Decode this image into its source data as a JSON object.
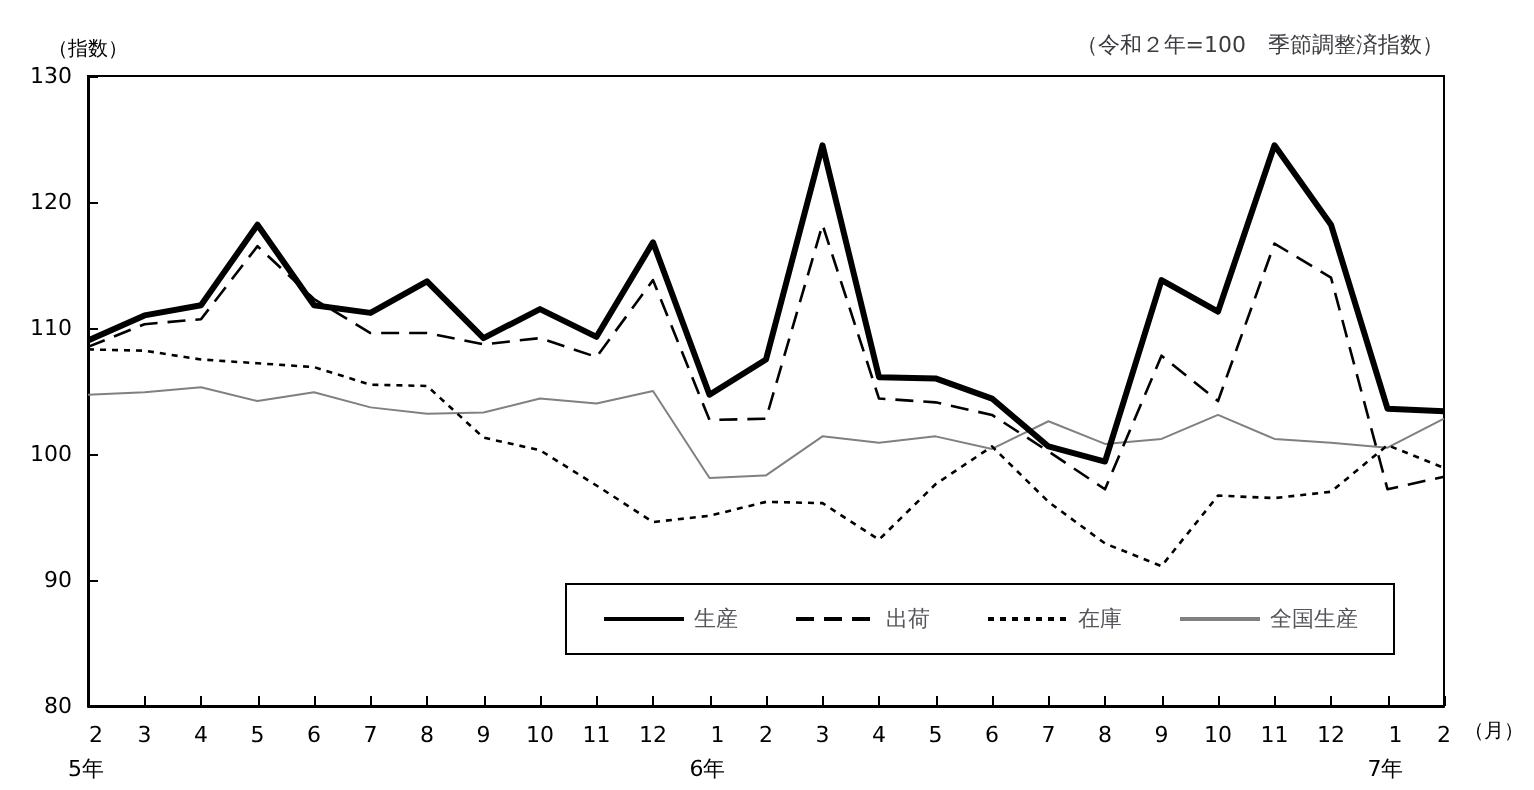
{
  "chart_data": {
    "type": "line",
    "ylabel": "（指数）",
    "xlabel": "（月）",
    "annotations": [
      "（令和２年=100　季節調整済指数）"
    ],
    "categories": [
      "2\n5年",
      "3",
      "4",
      "5",
      "6",
      "7",
      "8",
      "9",
      "10",
      "11",
      "12",
      "1\n6年",
      "2",
      "3",
      "4",
      "5",
      "6",
      "7",
      "8",
      "9",
      "10",
      "11",
      "12",
      "1\n7年",
      "2"
    ],
    "series": [
      {
        "name": "生産",
        "color": "#000000",
        "line_style": "solid",
        "values": [
          109,
          111,
          111.8,
          118.2,
          111.8,
          111.2,
          113.7,
          109.2,
          111.5,
          109.3,
          116.8,
          104.7,
          107.5,
          124.5,
          106.1,
          106,
          104.4,
          100.6,
          99.4,
          113.8,
          111.3,
          124.5,
          118.2,
          103.6,
          103.4
        ]
      },
      {
        "name": "出荷",
        "color": "#000000",
        "line_style": "dashed",
        "values": [
          108.5,
          110.3,
          110.7,
          116.5,
          112.3,
          109.6,
          109.6,
          108.7,
          109.2,
          107.7,
          113.8,
          102.7,
          102.8,
          118.2,
          104.4,
          104.1,
          103.1,
          100.2,
          97.2,
          107.8,
          104.2,
          116.7,
          114,
          97.2,
          98.2
        ]
      },
      {
        "name": "在庫",
        "color": "#000000",
        "line_style": "dotted",
        "values": [
          108.3,
          108.2,
          107.5,
          107.2,
          106.9,
          105.5,
          105.4,
          101.3,
          100.3,
          97.5,
          94.6,
          95.1,
          96.2,
          96.1,
          93.2,
          97.6,
          100.6,
          96.2,
          92.9,
          91.1,
          96.7,
          96.5,
          97,
          100.7,
          98.9
        ]
      },
      {
        "name": "全国生産",
        "color": "#808080",
        "line_style": "solid",
        "values": [
          104.7,
          104.9,
          105.3,
          104.2,
          104.9,
          103.7,
          103.2,
          103.3,
          104.4,
          104,
          105,
          98.1,
          98.3,
          101.4,
          100.9,
          101.4,
          100.4,
          102.6,
          100.8,
          101.2,
          103.1,
          101.2,
          100.9,
          100.5,
          102.8
        ]
      }
    ],
    "ylim": [
      80,
      130
    ],
    "yticks": [
      80,
      90,
      100,
      110,
      120,
      130
    ],
    "grid": false,
    "legend": "bottom right",
    "marker": "none"
  }
}
